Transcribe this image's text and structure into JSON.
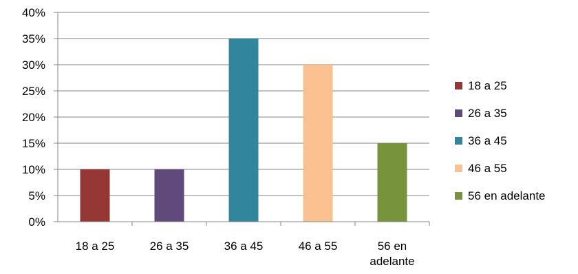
{
  "chart_data": {
    "type": "bar",
    "categories": [
      "18 a 25",
      "26 a 35",
      "36 a 45",
      "46 a 55",
      "56 en adelante"
    ],
    "category_labels": [
      [
        "18 a 25"
      ],
      [
        "26 a 35"
      ],
      [
        "36 a 45"
      ],
      [
        "46 a 55"
      ],
      [
        "56 en",
        "adelante"
      ]
    ],
    "values": [
      10,
      10,
      35,
      30,
      15
    ],
    "colors": [
      "#953735",
      "#604a7b",
      "#31859c",
      "#fac090",
      "#77933c"
    ],
    "legend": [
      "18 a 25",
      "26 a 35",
      "36 a 45",
      " 46 a 55",
      "56 en adelante"
    ],
    "yticks": [
      "0%",
      "5%",
      "10%",
      "15%",
      "20%",
      "25%",
      "30%",
      "35%",
      "40%"
    ],
    "ylim": [
      0,
      40
    ],
    "grid": true,
    "legend_position": "right",
    "title": "",
    "xlabel": "",
    "ylabel": ""
  }
}
